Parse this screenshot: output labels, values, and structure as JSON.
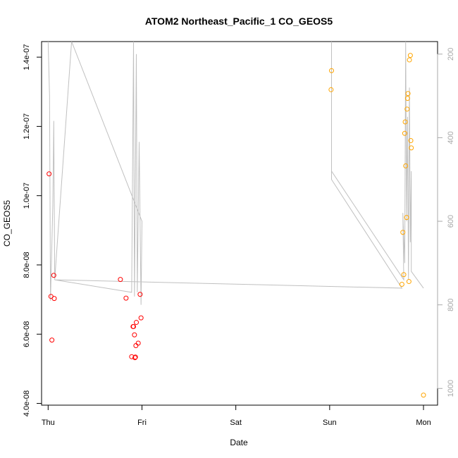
{
  "chart_data": {
    "type": "scatter",
    "title": "ATOM2 Northeast_Pacific_1 CO_GEOS5",
    "xlabel": "Date",
    "ylabel": "CO_GEOS5",
    "x_ticks": [
      "Thu",
      "Fri",
      "Sat",
      "Sun",
      "Mon"
    ],
    "x_range_days": [
      -0.07,
      4.15
    ],
    "ylim": [
      3.95e-08,
      1.445e-07
    ],
    "y_ticks": [
      4e-08,
      6e-08,
      8e-08,
      1e-07,
      1.2e-07,
      1.4e-07
    ],
    "y_tick_labels": [
      "4.0e-08",
      "6.0e-08",
      "8.0e-08",
      "1.0e-07",
      "1.2e-07",
      "1.4e-07"
    ],
    "y2_ticks": [
      200,
      400,
      600,
      800,
      1000
    ],
    "y2_range": [
      1040,
      170
    ],
    "colors": {
      "series_red": "#ff0000",
      "series_orange": "#ffa500",
      "profile_line": "#c0c0c0",
      "right_axis": "#a8a8a8"
    },
    "series": [
      {
        "color": "#ff0000",
        "points": [
          {
            "x": 0.01,
            "y": 1.063e-07
          },
          {
            "x": 0.03,
            "y": 7.09e-08
          },
          {
            "x": 0.04,
            "y": 5.83e-08
          },
          {
            "x": 0.06,
            "y": 7.7e-08
          },
          {
            "x": 0.065,
            "y": 7.03e-08
          },
          {
            "x": 0.77,
            "y": 7.58e-08
          },
          {
            "x": 0.83,
            "y": 7.04e-08
          },
          {
            "x": 0.89,
            "y": 5.35e-08
          },
          {
            "x": 0.905,
            "y": 6.22e-08
          },
          {
            "x": 0.91,
            "y": 6.22e-08
          },
          {
            "x": 0.92,
            "y": 5.98e-08
          },
          {
            "x": 0.925,
            "y": 5.32e-08
          },
          {
            "x": 0.93,
            "y": 5.34e-08
          },
          {
            "x": 0.935,
            "y": 5.67e-08
          },
          {
            "x": 0.94,
            "y": 6.34e-08
          },
          {
            "x": 0.96,
            "y": 5.74e-08
          },
          {
            "x": 0.98,
            "y": 7.15e-08
          },
          {
            "x": 0.99,
            "y": 6.47e-08
          }
        ]
      },
      {
        "color": "#ffa500",
        "points": [
          {
            "x": 3.02,
            "y": 1.361e-07
          },
          {
            "x": 3.015,
            "y": 1.306e-07
          },
          {
            "x": 3.77,
            "y": 7.44e-08
          },
          {
            "x": 3.78,
            "y": 8.94e-08
          },
          {
            "x": 3.79,
            "y": 7.72e-08
          },
          {
            "x": 3.8,
            "y": 1.18e-07
          },
          {
            "x": 3.805,
            "y": 1.213e-07
          },
          {
            "x": 3.81,
            "y": 1.086e-07
          },
          {
            "x": 3.82,
            "y": 9.37e-08
          },
          {
            "x": 3.825,
            "y": 1.25e-07
          },
          {
            "x": 3.83,
            "y": 1.281e-07
          },
          {
            "x": 3.835,
            "y": 1.295e-07
          },
          {
            "x": 3.845,
            "y": 7.52e-08
          },
          {
            "x": 3.85,
            "y": 1.392e-07
          },
          {
            "x": 3.86,
            "y": 1.405e-07
          },
          {
            "x": 3.865,
            "y": 1.159e-07
          },
          {
            "x": 3.87,
            "y": 1.138e-07
          },
          {
            "x": 4.0,
            "y": 4.24e-08
          }
        ]
      }
    ],
    "profile_line": {
      "axis": "right",
      "points": [
        {
          "x": 0.0,
          "y": 170
        },
        {
          "x": 0.015,
          "y": 300
        },
        {
          "x": 0.025,
          "y": 790
        },
        {
          "x": 0.05,
          "y": 560
        },
        {
          "x": 0.06,
          "y": 360
        },
        {
          "x": 0.07,
          "y": 740
        },
        {
          "x": 0.25,
          "y": 170
        },
        {
          "x": 1.0,
          "y": 600
        },
        {
          "x": 0.99,
          "y": 800
        },
        {
          "x": 0.97,
          "y": 410
        },
        {
          "x": 0.95,
          "y": 770
        },
        {
          "x": 0.94,
          "y": 200
        },
        {
          "x": 0.93,
          "y": 500
        },
        {
          "x": 0.92,
          "y": 780
        },
        {
          "x": 0.91,
          "y": 170
        },
        {
          "x": 0.89,
          "y": 770
        },
        {
          "x": 0.07,
          "y": 740
        },
        {
          "x": 3.77,
          "y": 760
        },
        {
          "x": 3.02,
          "y": 500
        },
        {
          "x": 3.02,
          "y": 170
        },
        {
          "x": 3.02,
          "y": 480
        },
        {
          "x": 3.79,
          "y": 740
        },
        {
          "x": 3.78,
          "y": 580
        },
        {
          "x": 3.8,
          "y": 700
        },
        {
          "x": 3.81,
          "y": 170
        },
        {
          "x": 3.82,
          "y": 600
        },
        {
          "x": 3.83,
          "y": 350
        },
        {
          "x": 3.84,
          "y": 740
        },
        {
          "x": 3.85,
          "y": 280
        },
        {
          "x": 3.86,
          "y": 650
        },
        {
          "x": 3.87,
          "y": 480
        },
        {
          "x": 3.87,
          "y": 720
        },
        {
          "x": 4.0,
          "y": 760
        }
      ]
    },
    "grid": false,
    "legend": "none"
  }
}
